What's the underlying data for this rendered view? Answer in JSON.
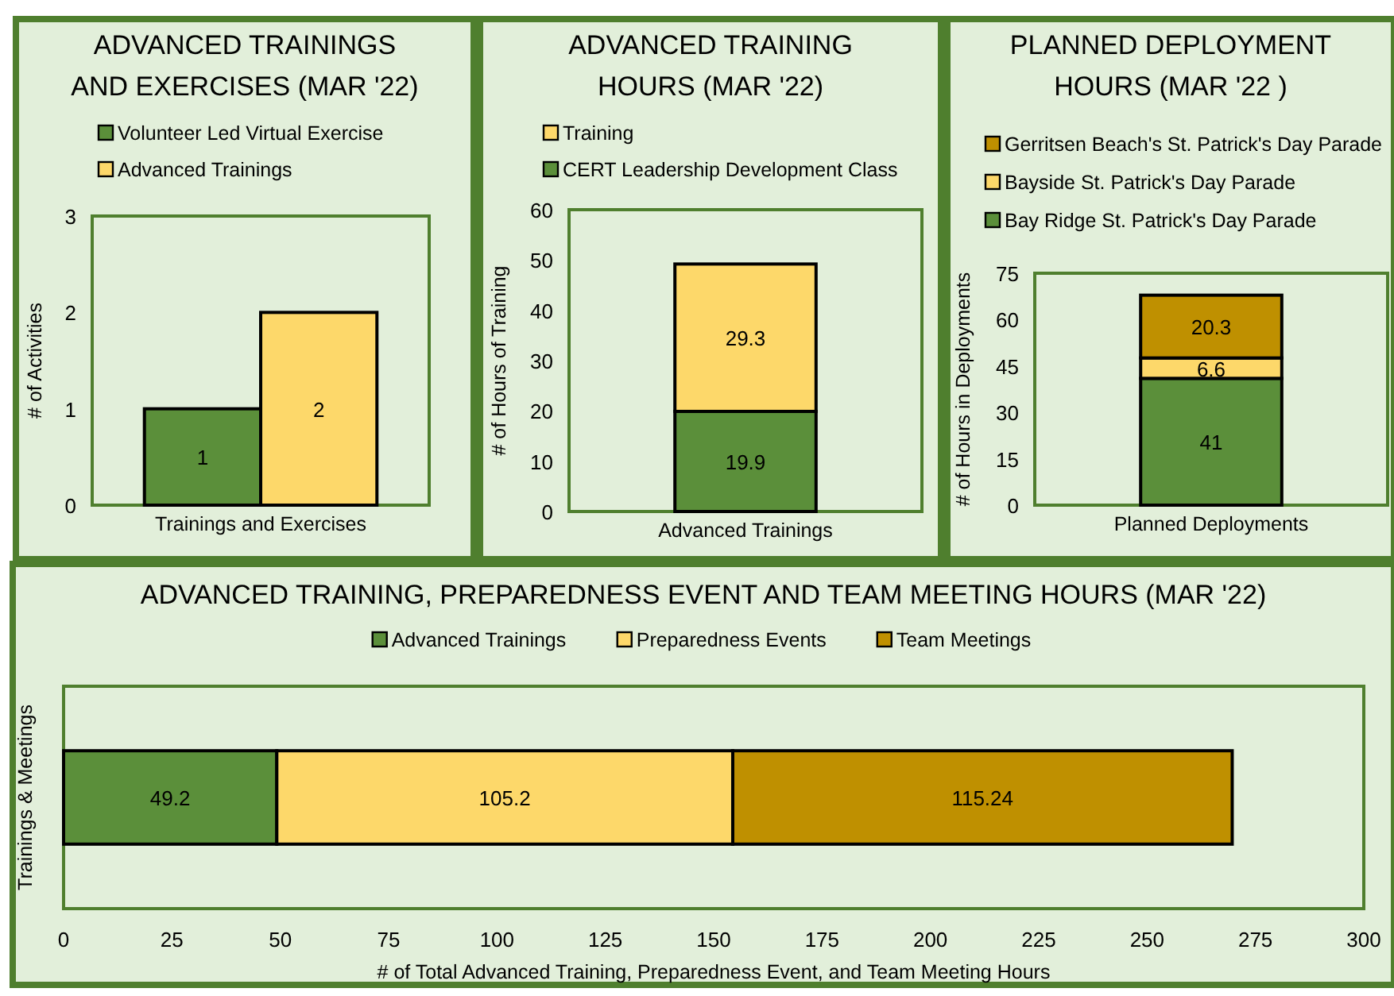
{
  "chart_data": [
    {
      "type": "bar",
      "title": "ADVANCED TRAININGS AND EXERCISES (MAR '22)",
      "categories": [
        "Trainings and Exercises"
      ],
      "ylabel": "# of Activities",
      "ylim": [
        0,
        3
      ],
      "yticks": [
        0,
        1,
        2,
        3
      ],
      "legend": "top",
      "data_labels": true,
      "series": [
        {
          "name": "Volunteer Led Virtual Exercise",
          "color": "#5b8f3a",
          "values": [
            1
          ]
        },
        {
          "name": "Advanced Trainings",
          "color": "#fdd86a",
          "values": [
            2
          ]
        }
      ]
    },
    {
      "type": "bar",
      "stacked": true,
      "title": "ADVANCED TRAINING HOURS (MAR '22)",
      "categories": [
        "Advanced Trainings"
      ],
      "ylabel": "# of Hours of Training",
      "ylim": [
        0,
        60
      ],
      "yticks": [
        0,
        10,
        20,
        30,
        40,
        50,
        60
      ],
      "legend": "top",
      "data_labels": true,
      "series": [
        {
          "name": "CERT Leadership Development Class",
          "color": "#5b8f3a",
          "values": [
            19.9
          ]
        },
        {
          "name": "Training",
          "color": "#fdd86a",
          "values": [
            29.3
          ]
        }
      ]
    },
    {
      "type": "bar",
      "stacked": true,
      "title": "PLANNED DEPLOYMENT HOURS (MAR '22 )",
      "categories": [
        "Planned Deployments"
      ],
      "ylabel": "# of Hours in Deployments",
      "ylim": [
        0,
        75
      ],
      "yticks": [
        0,
        15,
        30,
        45,
        60,
        75
      ],
      "legend": "top",
      "data_labels": true,
      "series": [
        {
          "name": "Bay Ridge St. Patrick's Day Parade",
          "color": "#5b8f3a",
          "values": [
            41
          ]
        },
        {
          "name": "Bayside St. Patrick's Day Parade",
          "color": "#fdd86a",
          "values": [
            6.6
          ]
        },
        {
          "name": "Gerritsen Beach's St. Patrick's Day Parade",
          "color": "#bf9000",
          "values": [
            20.3
          ]
        }
      ]
    },
    {
      "type": "bar",
      "stacked": true,
      "orientation": "horizontal",
      "title": "ADVANCED TRAINING, PREPAREDNESS EVENT AND TEAM MEETING HOURS (MAR '22)",
      "categories": [
        null
      ],
      "xlabel": "# of Total Advanced Training, Preparedness Event, and Team Meeting Hours",
      "ylabel": "Trainings & Meetings",
      "xlim": [
        0,
        300
      ],
      "xticks": [
        0,
        25,
        50,
        75,
        100,
        125,
        150,
        175,
        200,
        225,
        250,
        275,
        300
      ],
      "legend": "top",
      "data_labels": true,
      "series": [
        {
          "name": "Advanced Trainings",
          "color": "#5b8f3a",
          "values": [
            49.2
          ]
        },
        {
          "name": "Preparedness Events",
          "color": "#fdd86a",
          "values": [
            105.2
          ]
        },
        {
          "name": "Team Meetings",
          "color": "#bf9000",
          "values": [
            115.24
          ]
        }
      ]
    }
  ]
}
